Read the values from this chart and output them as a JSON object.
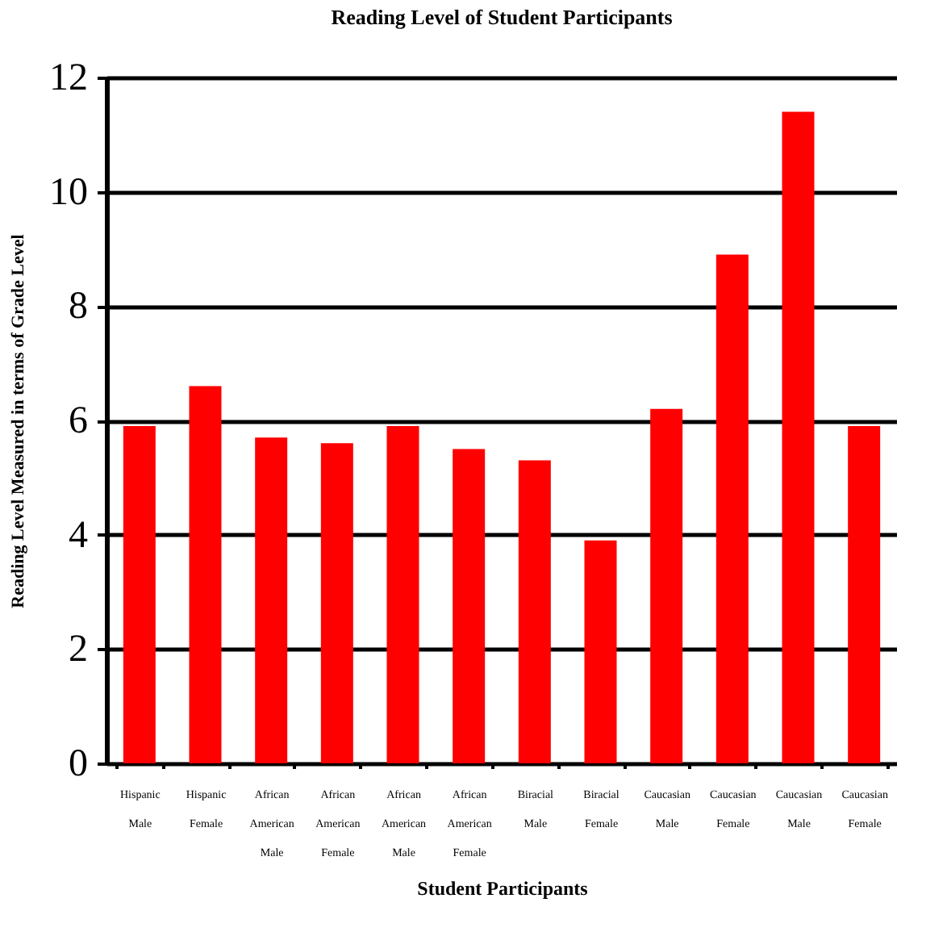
{
  "chart_data": {
    "type": "bar",
    "title": "Reading Level of Student Participants",
    "xlabel": "Student Participants",
    "ylabel": "Reading Level Measured in terms of Grade Level",
    "categories": [
      "Hispanic Male",
      "Hispanic Female",
      "African American Male",
      "African American Female",
      "African American Male",
      "African American Female",
      "Biracial Male",
      "Biracial Female",
      "Caucasian Male",
      "Caucasian Female",
      "Caucasian Male",
      "Caucasian Female"
    ],
    "values": [
      5.9,
      6.6,
      5.7,
      5.6,
      5.9,
      5.5,
      5.3,
      3.9,
      6.2,
      8.9,
      11.4,
      5.9
    ],
    "color": "#ff0000",
    "ylim": [
      0,
      12
    ],
    "yticks": [
      0,
      2,
      4,
      6,
      8,
      10,
      12
    ],
    "grid": "y"
  }
}
